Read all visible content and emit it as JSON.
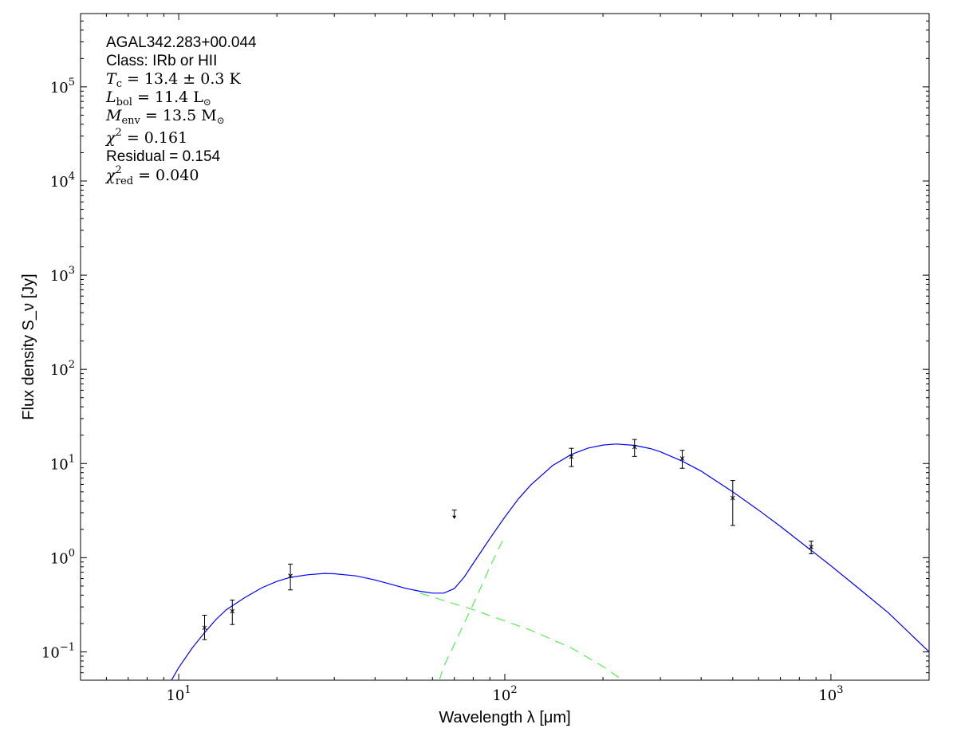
{
  "chart_data": {
    "type": "line",
    "x_scale": "log",
    "y_scale": "log",
    "xlim": [
      5,
      2000
    ],
    "ylim": [
      0.05,
      600000
    ],
    "xlabel": "Wavelength λ [μm]",
    "ylabel": "Flux density S_ν [Jy]",
    "x_tick_labels": [
      {
        "value": 10,
        "base": "10",
        "exp": "1"
      },
      {
        "value": 100,
        "base": "10",
        "exp": "2"
      },
      {
        "value": 1000,
        "base": "10",
        "exp": "3"
      }
    ],
    "y_tick_labels": [
      {
        "value": 0.1,
        "base": "10",
        "exp": "−1"
      },
      {
        "value": 1,
        "base": "10",
        "exp": "0"
      },
      {
        "value": 10,
        "base": "10",
        "exp": "1"
      },
      {
        "value": 100,
        "base": "10",
        "exp": "2"
      },
      {
        "value": 1000,
        "base": "10",
        "exp": "3"
      },
      {
        "value": 10000,
        "base": "10",
        "exp": "4"
      },
      {
        "value": 100000,
        "base": "10",
        "exp": "5"
      }
    ],
    "annotations": {
      "source": "AGAL342.283+00.044",
      "class_line": "Class: IRb or HII",
      "tc": {
        "sym": "T",
        "sub": "c",
        "text": " = 13.4 ± 0.3 K"
      },
      "lbol": {
        "sym": "L",
        "sub": "bol",
        "text": " = 11.4 L",
        "suffix": "⊙"
      },
      "menv": {
        "sym": "M",
        "sub": "env",
        "text": " = 13.5 M",
        "suffix": "⊙"
      },
      "chi2": {
        "sym": "χ",
        "sup": "2",
        "text": " = 0.161"
      },
      "residual": "Residual = 0.154",
      "chi2red": {
        "sym": "χ",
        "sup": "2",
        "sub": "red",
        "text": " = 0.040"
      }
    },
    "series": [
      {
        "style": "solid",
        "color": "#0000ff",
        "x": [
          9.5,
          10,
          11,
          12,
          13,
          14,
          16,
          18,
          20,
          22,
          25,
          28,
          30,
          35,
          40,
          45,
          50,
          55,
          60,
          65,
          70,
          75,
          80,
          90,
          100,
          110,
          120,
          140,
          160,
          180,
          200,
          220,
          250,
          280,
          300,
          350,
          400,
          500,
          600,
          700,
          800,
          1000,
          1200,
          1500,
          2000
        ],
        "y": [
          0.05,
          0.068,
          0.11,
          0.16,
          0.22,
          0.28,
          0.38,
          0.48,
          0.56,
          0.62,
          0.66,
          0.68,
          0.675,
          0.64,
          0.58,
          0.52,
          0.47,
          0.44,
          0.42,
          0.42,
          0.47,
          0.62,
          0.87,
          1.6,
          2.7,
          4.2,
          5.9,
          9.5,
          12.5,
          14.6,
          15.7,
          16.1,
          15.6,
          14.4,
          13.3,
          10.6,
          8.3,
          5.0,
          3.2,
          2.15,
          1.5,
          0.82,
          0.49,
          0.26,
          0.1
        ]
      },
      {
        "style": "dashed",
        "color": "#55ee55",
        "x": [
          55,
          80,
          120,
          160,
          200,
          230
        ],
        "y": [
          0.42,
          0.28,
          0.17,
          0.11,
          0.07,
          0.05
        ]
      },
      {
        "style": "dashed",
        "color": "#55ee55",
        "x": [
          63,
          65,
          70,
          75,
          80,
          90,
          100
        ],
        "y": [
          0.05,
          0.07,
          0.12,
          0.2,
          0.32,
          0.8,
          1.7
        ]
      }
    ],
    "points": [
      {
        "x": 12.0,
        "y": 0.18,
        "lo": 0.135,
        "hi": 0.245
      },
      {
        "x": 14.6,
        "y": 0.27,
        "lo": 0.195,
        "hi": 0.355
      },
      {
        "x": 22.0,
        "y": 0.64,
        "lo": 0.455,
        "hi": 0.855
      },
      {
        "x": 160,
        "y": 11.8,
        "lo": 9.3,
        "hi": 14.5
      },
      {
        "x": 250,
        "y": 15.0,
        "lo": 11.9,
        "hi": 18.0
      },
      {
        "x": 350,
        "y": 11.3,
        "lo": 8.9,
        "hi": 13.8
      },
      {
        "x": 500,
        "y": 4.3,
        "lo": 2.2,
        "hi": 6.6
      },
      {
        "x": 870,
        "y": 1.3,
        "lo": 1.1,
        "hi": 1.5
      }
    ],
    "upper_limits": [
      {
        "x": 70,
        "y": 3.2
      }
    ]
  }
}
